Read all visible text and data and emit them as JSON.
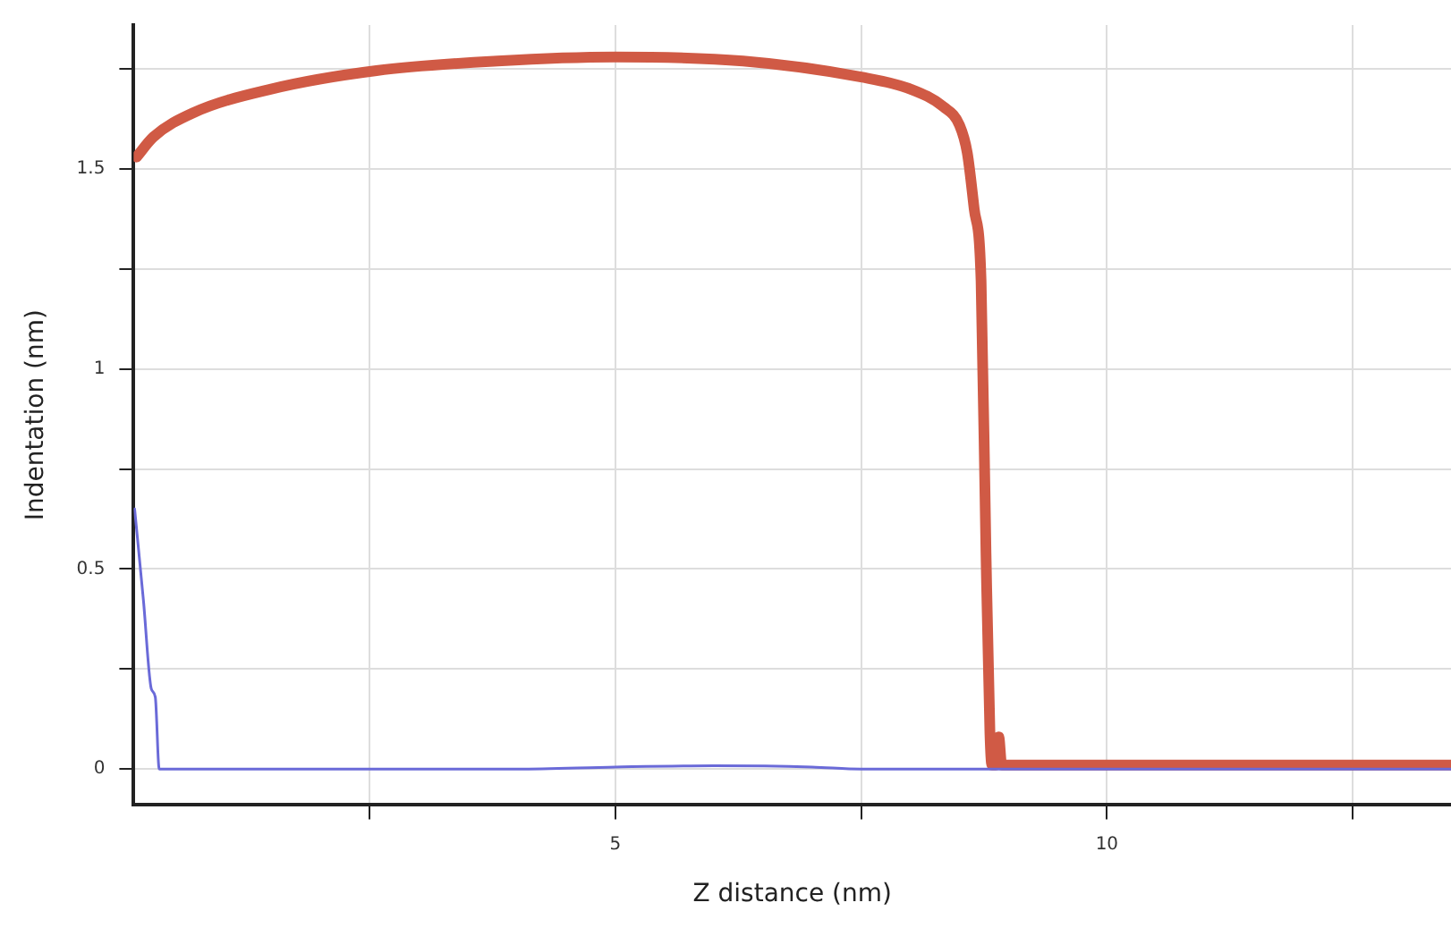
{
  "chart_data": {
    "type": "line",
    "xlabel": "Z distance (nm)",
    "ylabel": "Indentation (nm)",
    "xlim": [
      0.1,
      13.5
    ],
    "ylim": [
      -0.09,
      1.86
    ],
    "xticks": [
      {
        "value": 2.5,
        "label": null
      },
      5,
      {
        "value": 7.5,
        "label": null
      },
      10,
      {
        "value": 12.5,
        "label": null
      }
    ],
    "yticks": [
      0,
      {
        "value": 0.25,
        "label": null
      },
      0.5,
      {
        "value": 0.75,
        "label": null
      },
      1,
      {
        "value": 1.25,
        "label": null
      },
      1.5,
      {
        "value": 1.75,
        "label": null
      }
    ],
    "grid": true,
    "legend": false,
    "marker": "none",
    "line_style": "solid",
    "series": [
      {
        "color": "#d05a45",
        "x": [
          0.13,
          0.3,
          0.7,
          1.5,
          2.57,
          3.8,
          5,
          6.3,
          7.5,
          8.0,
          8.34,
          8.5,
          8.58,
          8.65,
          8.72,
          8.77,
          8.81,
          8.83,
          8.87,
          8.9,
          8.93,
          8.96,
          10,
          12,
          13.5
        ],
        "values": [
          1.53,
          1.58,
          1.64,
          1.7,
          1.746,
          1.77,
          1.78,
          1.77,
          1.73,
          1.7,
          1.655,
          1.61,
          1.54,
          1.4,
          1.22,
          0.54,
          0.09,
          0.01,
          0.01,
          0.08,
          0.01,
          0.01,
          0.01,
          0.01,
          0.01
        ]
      },
      {
        "color": "#6a6ad8",
        "x": [
          0.11,
          0.2,
          0.28,
          0.32,
          0.36,
          1,
          2.5,
          4,
          5,
          6,
          7,
          7.5,
          8.8,
          10,
          12,
          13.5
        ],
        "values": [
          0.65,
          0.42,
          0.2,
          0.18,
          0,
          0,
          0,
          0,
          0.005,
          0.008,
          0.005,
          0,
          0,
          0,
          0,
          0
        ]
      }
    ]
  }
}
